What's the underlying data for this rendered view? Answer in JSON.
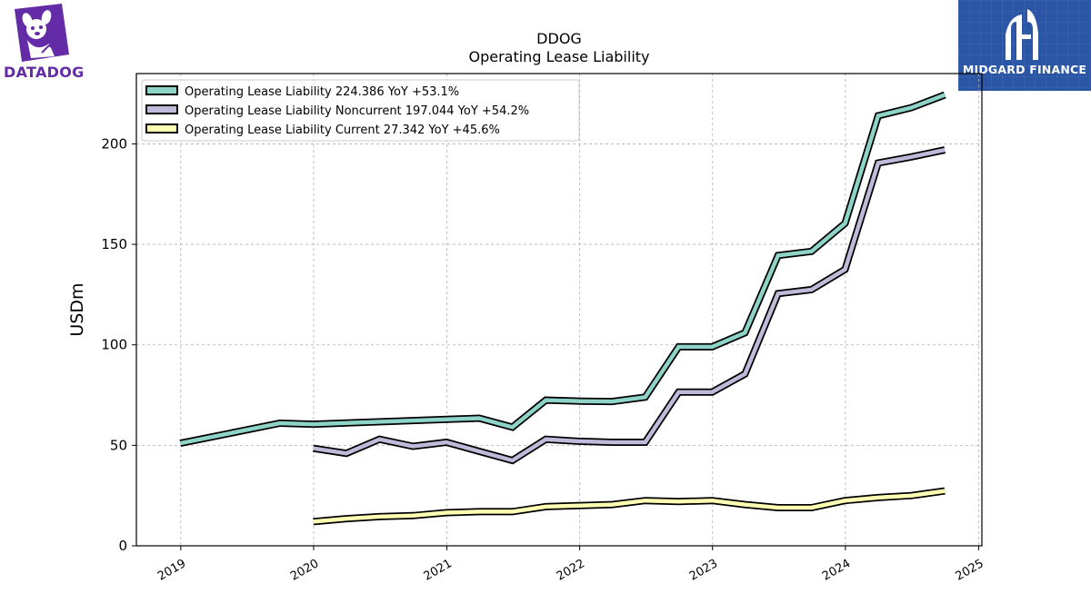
{
  "branding": {
    "left_logo_text": "DATADOG",
    "right_logo_text": "MIDGARD FINANCE",
    "left_logo_color": "#632ca6",
    "right_logo_color": "#2b56a6"
  },
  "chart_data": {
    "type": "line",
    "title": "DDOG",
    "subtitle": "Operating Lease Liability",
    "xlabel": "",
    "ylabel": "USDm",
    "xlim": [
      "2018-09-01",
      "2025-01-10"
    ],
    "ylim": [
      0,
      235
    ],
    "x_ticks": [
      "2019",
      "2020",
      "2021",
      "2022",
      "2023",
      "2024",
      "2025"
    ],
    "y_ticks": [
      0,
      50,
      100,
      150,
      200
    ],
    "grid": true,
    "legend_position": "top-left",
    "series": [
      {
        "name": "Operating Lease Liability",
        "legend_label": "Operating Lease Liability  224.386 YoY +53.1%",
        "color": "#8dd3c7",
        "points": [
          [
            "2018-12-31",
            51
          ],
          [
            "2019-09-30",
            61
          ],
          [
            "2019-12-31",
            60.5
          ],
          [
            "2021-03-31",
            63.5
          ],
          [
            "2021-06-30",
            59
          ],
          [
            "2021-09-30",
            72.5
          ],
          [
            "2021-12-31",
            72
          ],
          [
            "2022-03-31",
            71.8
          ],
          [
            "2022-06-30",
            74
          ],
          [
            "2022-09-30",
            99
          ],
          [
            "2022-12-31",
            99
          ],
          [
            "2023-03-31",
            106
          ],
          [
            "2023-06-30",
            144.5
          ],
          [
            "2023-09-30",
            146.5
          ],
          [
            "2023-12-31",
            160.5
          ],
          [
            "2024-03-31",
            214
          ],
          [
            "2024-06-30",
            218
          ],
          [
            "2024-09-30",
            224.4
          ]
        ]
      },
      {
        "name": "Operating Lease Liability Noncurrent",
        "legend_label": "Operating Lease Liability Noncurrent  197.044 YoY +54.2%",
        "color": "#bebada",
        "points": [
          [
            "2019-12-31",
            48.5
          ],
          [
            "2020-03-31",
            46
          ],
          [
            "2020-06-30",
            53
          ],
          [
            "2020-09-30",
            49.5
          ],
          [
            "2020-12-31",
            51.5
          ],
          [
            "2021-03-31",
            47
          ],
          [
            "2021-06-30",
            42.5
          ],
          [
            "2021-09-30",
            53
          ],
          [
            "2021-12-31",
            52
          ],
          [
            "2022-03-31",
            51.5
          ],
          [
            "2022-06-30",
            51.5
          ],
          [
            "2022-09-30",
            76.5
          ],
          [
            "2022-12-31",
            76.5
          ],
          [
            "2023-03-31",
            85.5
          ],
          [
            "2023-06-30",
            125.5
          ],
          [
            "2023-09-30",
            127.5
          ],
          [
            "2023-12-31",
            137.5
          ],
          [
            "2024-03-31",
            190.5
          ],
          [
            "2024-06-30",
            193.5
          ],
          [
            "2024-09-30",
            197
          ]
        ]
      },
      {
        "name": "Operating Lease Liability Current",
        "legend_label": "Operating Lease Liability Current  27.342 YoY +45.6%",
        "color": "#ffffb3",
        "points": [
          [
            "2019-12-31",
            12
          ],
          [
            "2020-03-31",
            13.5
          ],
          [
            "2020-06-30",
            14.5
          ],
          [
            "2020-09-30",
            15
          ],
          [
            "2020-12-31",
            16.5
          ],
          [
            "2021-03-31",
            17
          ],
          [
            "2021-06-30",
            17
          ],
          [
            "2021-09-30",
            19.5
          ],
          [
            "2021-12-31",
            20
          ],
          [
            "2022-03-31",
            20.5
          ],
          [
            "2022-06-30",
            22.5
          ],
          [
            "2022-09-30",
            22
          ],
          [
            "2022-12-31",
            22.5
          ],
          [
            "2023-03-31",
            20.5
          ],
          [
            "2023-06-30",
            19
          ],
          [
            "2023-09-30",
            19
          ],
          [
            "2023-12-31",
            22.5
          ],
          [
            "2024-03-31",
            24
          ],
          [
            "2024-06-30",
            25
          ],
          [
            "2024-09-30",
            27.3
          ]
        ]
      }
    ]
  }
}
